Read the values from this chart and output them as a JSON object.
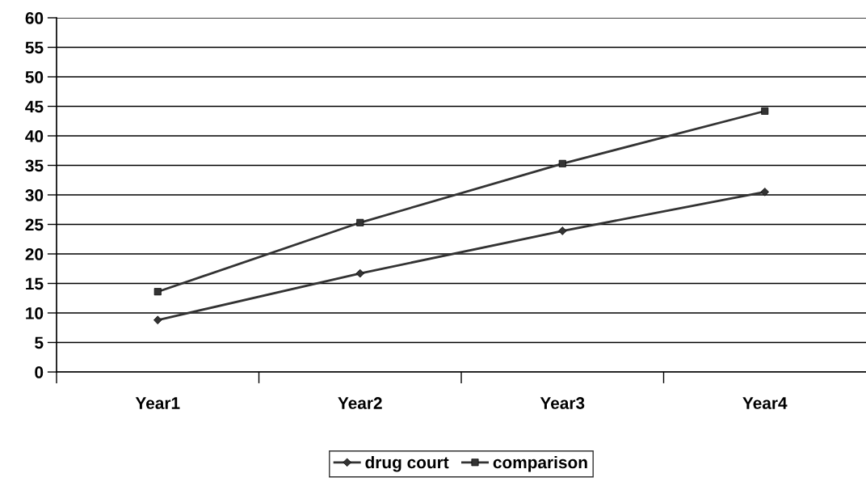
{
  "chart_data": {
    "type": "line",
    "categories": [
      "Year1",
      "Year2",
      "Year3",
      "Year4"
    ],
    "series": [
      {
        "name": "drug court",
        "color": "#333333",
        "marker": "diamond",
        "values": [
          8.8,
          16.7,
          23.9,
          30.5
        ]
      },
      {
        "name": "comparison",
        "color": "#333333",
        "marker": "square",
        "values": [
          13.6,
          25.3,
          35.3,
          44.2
        ]
      }
    ],
    "ylim": [
      0,
      60
    ],
    "yticks": [
      0,
      5,
      10,
      15,
      20,
      25,
      30,
      35,
      40,
      45,
      50,
      55,
      60
    ],
    "grid": "y",
    "legend": "bottom",
    "line_style": "solid"
  }
}
